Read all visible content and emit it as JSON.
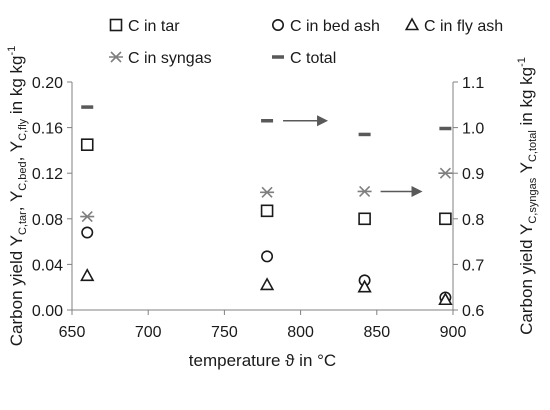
{
  "chart_data": {
    "type": "scatter",
    "xlabel": "temperature ϑ in °C",
    "ylabel_left": {
      "prefix": "Carbon yield Y",
      "parts": [
        {
          "sub": "C,tar",
          "sep": ", Y"
        },
        {
          "sub": "C,bed",
          "sep": ", Y"
        },
        {
          "sub": "C,fly",
          "sep": " in kg kg"
        }
      ],
      "sup": "-1"
    },
    "ylabel_right": {
      "prefix": "Carbon yield Y",
      "parts": [
        {
          "sub": "C,syngas",
          "sep": " Y"
        },
        {
          "sub": "C,total",
          "sep": " in kg kg"
        }
      ],
      "sup": "-1"
    },
    "xlim": [
      650,
      900
    ],
    "ylim_left": [
      0,
      0.2
    ],
    "ylim_right": [
      0.6,
      1.1
    ],
    "x_ticks": [
      "650",
      "700",
      "750",
      "800",
      "850",
      "900"
    ],
    "y_ticks_left": [
      "0.00",
      "0.04",
      "0.08",
      "0.12",
      "0.16",
      "0.20"
    ],
    "y_ticks_right": [
      "0.6",
      "0.7",
      "0.8",
      "0.9",
      "1.0",
      "1.1"
    ],
    "grid": false,
    "legend_position": "top",
    "series": [
      {
        "name": "C in tar",
        "marker": "square",
        "axis": "left",
        "x": [
          660,
          778,
          842,
          895
        ],
        "y": [
          0.145,
          0.087,
          0.08,
          0.08
        ]
      },
      {
        "name": "C in bed ash",
        "marker": "circle",
        "axis": "left",
        "x": [
          660,
          778,
          842,
          895
        ],
        "y": [
          0.068,
          0.047,
          0.026,
          0.011
        ]
      },
      {
        "name": "C in fly ash",
        "marker": "triangle",
        "axis": "left",
        "x": [
          660,
          778,
          842,
          895
        ],
        "y": [
          0.03,
          0.022,
          0.02,
          0.009
        ]
      },
      {
        "name": "C in syngas",
        "marker": "asterisk",
        "axis": "right",
        "x": [
          660,
          778,
          842,
          895
        ],
        "y": [
          0.805,
          0.858,
          0.86,
          0.9
        ]
      },
      {
        "name": "C total",
        "marker": "dash",
        "axis": "right",
        "x": [
          660,
          778,
          842,
          895
        ],
        "y": [
          1.045,
          1.015,
          0.985,
          0.998
        ]
      }
    ],
    "annotations": [
      {
        "type": "arrow",
        "direction": "right",
        "from": [
          778,
          1.015
        ],
        "to": [
          818,
          1.015
        ],
        "axis": "right"
      },
      {
        "type": "arrow",
        "direction": "right",
        "from": [
          842,
          0.86
        ],
        "to": [
          880,
          0.86
        ],
        "axis": "right"
      }
    ],
    "colors": {
      "markers": "#1a1a1a",
      "syngas": "#7f7f7f",
      "total": "#595959",
      "axes": "#808080"
    }
  }
}
